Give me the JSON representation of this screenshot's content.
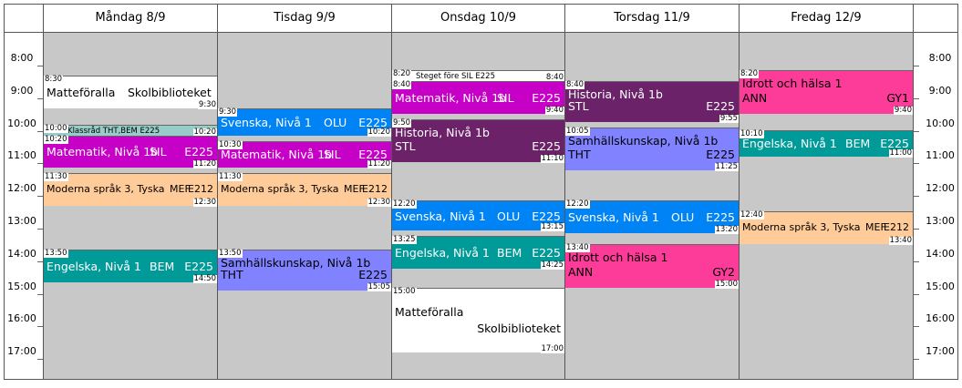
{
  "days": [
    {
      "label": "Måndag 8/9"
    },
    {
      "label": "Tisdag 9/9"
    },
    {
      "label": "Onsdag 10/9"
    },
    {
      "label": "Torsdag 11/9"
    },
    {
      "label": "Fredag 12/9"
    }
  ],
  "hours": [
    "8:00",
    "9:00",
    "10:00",
    "11:00",
    "12:00",
    "13:00",
    "14:00",
    "15:00",
    "16:00",
    "17:00"
  ],
  "colors": {
    "white": "#ffffff",
    "teal": "#009a99",
    "magenta": "#c600c6",
    "peach": "#ffcc99",
    "blue": "#0083f4",
    "purple": "#6b2268",
    "periwinkle": "#8082ff",
    "pink": "#fd3c9a",
    "klass": "#98ccc8",
    "grey": "#c8c8c8"
  },
  "lessons": [
    {
      "day": 0,
      "start": "8:30",
      "end": "9:30",
      "color": "white",
      "text_color": "#000",
      "lines": [
        {
          "l": "Matteföralla",
          "r": "Skolbiblioteket",
          "rpos": "mid"
        }
      ],
      "layout": "oneline"
    },
    {
      "day": 0,
      "start": "10:00",
      "end": "10:20",
      "color": "klass",
      "text_color": "#000",
      "lines": [
        {
          "l": "Klassråd THT,BEM E225"
        }
      ],
      "layout": "tiny"
    },
    {
      "day": 0,
      "start": "10:20",
      "end": "11:20",
      "color": "magenta",
      "text_color": "#fff",
      "lines": [
        {
          "l": "Matematik, Nivå 1b",
          "m": "SIL",
          "r": "E225"
        }
      ],
      "layout": "oneline"
    },
    {
      "day": 0,
      "start": "11:30",
      "end": "12:30",
      "color": "peach",
      "text_color": "#000",
      "lines": [
        {
          "l": "Moderna språk 3, Tyska",
          "m": "MEF",
          "r": "E212"
        }
      ],
      "layout": "oneline-small"
    },
    {
      "day": 0,
      "start": "13:50",
      "end": "14:50",
      "color": "teal",
      "text_color": "#fff",
      "lines": [
        {
          "l": "Engelska, Nivå 1",
          "m": "BEM",
          "r": "E225"
        }
      ],
      "layout": "oneline"
    },
    {
      "day": 1,
      "start": "9:30",
      "end": "10:20",
      "color": "blue",
      "text_color": "#fff",
      "lines": [
        {
          "l": "Svenska, Nivå 1",
          "m": "OLU",
          "r": "E225"
        }
      ],
      "layout": "oneline"
    },
    {
      "day": 1,
      "start": "10:30",
      "end": "11:20",
      "color": "magenta",
      "text_color": "#fff",
      "lines": [
        {
          "l": "Matematik, Nivå 1b",
          "m": "SIL",
          "r": "E225"
        }
      ],
      "layout": "oneline"
    },
    {
      "day": 1,
      "start": "11:30",
      "end": "12:30",
      "color": "peach",
      "text_color": "#000",
      "lines": [
        {
          "l": "Moderna språk 3, Tyska",
          "m": "MEF",
          "r": "E212"
        }
      ],
      "layout": "oneline-small"
    },
    {
      "day": 1,
      "start": "13:50",
      "end": "15:05",
      "color": "periwinkle",
      "text_color": "#000",
      "lines": [
        {
          "l": "Samhällskunskap, Nivå 1b"
        },
        {
          "l": "THT",
          "r": "E225"
        }
      ],
      "layout": "twoline"
    },
    {
      "day": 2,
      "start": "8:20",
      "end": "8:40",
      "color": "white",
      "text_color": "#000",
      "lines": [
        {
          "l": "Steget före SIL E225"
        }
      ],
      "layout": "tiny"
    },
    {
      "day": 2,
      "start": "8:40",
      "end": "9:40",
      "color": "magenta",
      "text_color": "#fff",
      "lines": [
        {
          "l": "Matematik, Nivå 1b",
          "m": "SIL",
          "r": "E225"
        }
      ],
      "layout": "oneline"
    },
    {
      "day": 2,
      "start": "9:50",
      "end": "11:10",
      "color": "purple",
      "text_color": "#fff",
      "lines": [
        {
          "l": "Historia, Nivå 1b"
        },
        {
          "l": "STL",
          "r": "E225"
        }
      ],
      "layout": "twoline"
    },
    {
      "day": 2,
      "start": "12:20",
      "end": "13:15",
      "color": "blue",
      "text_color": "#fff",
      "lines": [
        {
          "l": "Svenska, Nivå 1",
          "m": "OLU",
          "r": "E225"
        }
      ],
      "layout": "oneline"
    },
    {
      "day": 2,
      "start": "13:25",
      "end": "14:25",
      "color": "teal",
      "text_color": "#fff",
      "lines": [
        {
          "l": "Engelska, Nivå 1",
          "m": "BEM",
          "r": "E225"
        }
      ],
      "layout": "oneline"
    },
    {
      "day": 2,
      "start": "15:00",
      "end": "17:00",
      "color": "white",
      "text_color": "#000",
      "lines": [
        {
          "l": "Matteföralla"
        },
        {
          "r": "Skolbiblioteket"
        }
      ],
      "layout": "twoline-big"
    },
    {
      "day": 3,
      "start": "8:40",
      "end": "9:55",
      "color": "purple",
      "text_color": "#fff",
      "lines": [
        {
          "l": "Historia, Nivå 1b"
        },
        {
          "l": "STL",
          "r": "E225"
        }
      ],
      "layout": "twoline"
    },
    {
      "day": 3,
      "start": "10:05",
      "end": "11:25",
      "color": "periwinkle",
      "text_color": "#000",
      "lines": [
        {
          "l": "Samhällskunskap, Nivå 1b"
        },
        {
          "l": "THT",
          "r": "E225"
        }
      ],
      "layout": "twoline"
    },
    {
      "day": 3,
      "start": "12:20",
      "end": "13:20",
      "color": "blue",
      "text_color": "#fff",
      "lines": [
        {
          "l": "Svenska, Nivå 1",
          "m": "OLU",
          "r": "E225"
        }
      ],
      "layout": "oneline"
    },
    {
      "day": 3,
      "start": "13:40",
      "end": "15:00",
      "color": "pink",
      "text_color": "#000",
      "lines": [
        {
          "l": "Idrott och hälsa 1"
        },
        {
          "l": "ANN",
          "r": "GY2"
        }
      ],
      "layout": "twoline"
    },
    {
      "day": 4,
      "start": "8:20",
      "end": "9:40",
      "color": "pink",
      "text_color": "#000",
      "lines": [
        {
          "l": "Idrott och hälsa 1"
        },
        {
          "l": "ANN",
          "r": "GY1"
        }
      ],
      "layout": "twoline"
    },
    {
      "day": 4,
      "start": "10:10",
      "end": "11:00",
      "color": "teal",
      "text_color": "#fff",
      "lines": [
        {
          "l": "Engelska, Nivå 1",
          "m": "BEM",
          "r": "E225"
        }
      ],
      "layout": "oneline"
    },
    {
      "day": 4,
      "start": "12:40",
      "end": "13:40",
      "color": "peach",
      "text_color": "#000",
      "lines": [
        {
          "l": "Moderna språk 3, Tyska",
          "m": "MEF",
          "r": "E212"
        }
      ],
      "layout": "oneline-small"
    }
  ]
}
